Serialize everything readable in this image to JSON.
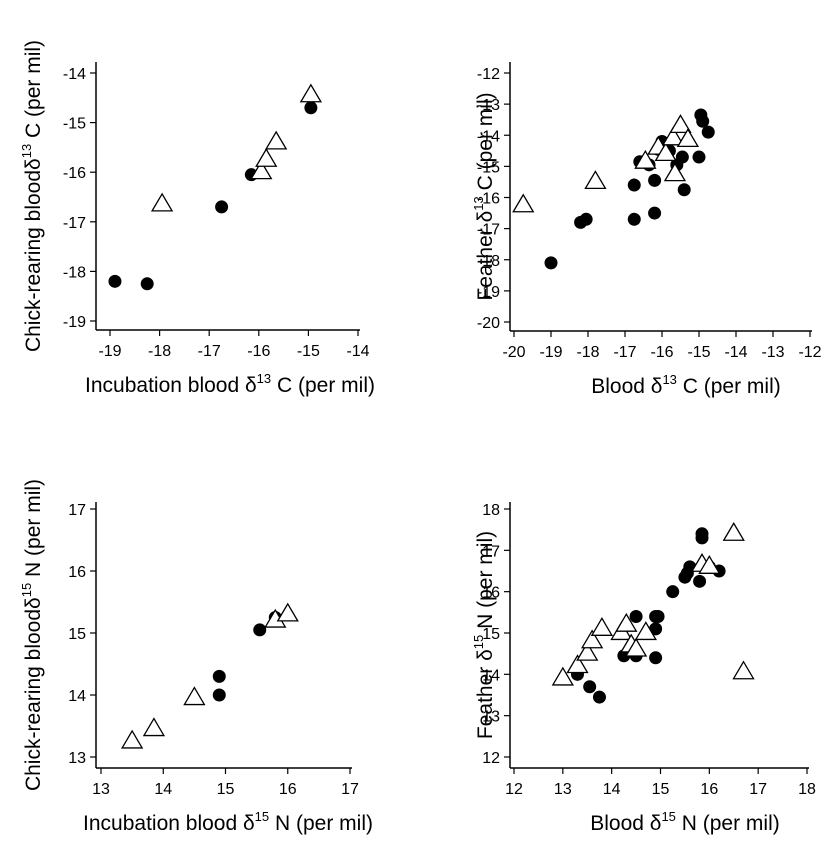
{
  "chart_data": [
    {
      "type": "scatter",
      "xlabel": {
        "pre": "Incubation blood δ",
        "sup": "13",
        "post": " C (per mil)"
      },
      "ylabel": {
        "pre": "Chick-rearing blood",
        "mid": "δ",
        "sup": "13",
        "post": " C (per mil)"
      },
      "xlim": [
        -19.0,
        -14.0
      ],
      "ylim": [
        -19.0,
        -14.0
      ],
      "xticks": [
        "-19",
        "-18",
        "-17",
        "-16",
        "-15",
        "-14"
      ],
      "yticks": [
        "-14",
        "-15",
        "-16",
        "-17",
        "-18",
        "-19"
      ],
      "series": [
        {
          "marker": "filled-circle",
          "x": [
            -18.9,
            -18.25,
            -16.75,
            -16.15,
            -14.95
          ],
          "y": [
            -18.2,
            -18.25,
            -16.7,
            -16.05,
            -14.7
          ]
        },
        {
          "marker": "open-triangle",
          "x": [
            -17.95,
            -15.95,
            -15.85,
            -15.65,
            -14.95
          ],
          "y": [
            -16.65,
            -16.0,
            -15.75,
            -15.4,
            -14.45
          ]
        }
      ]
    },
    {
      "type": "scatter",
      "xlabel": {
        "pre": "Blood δ",
        "sup": "13",
        "post": " C (per mil)"
      },
      "ylabel": {
        "pre": "Feather δ",
        "sup": "13",
        "post": " C (per mil)"
      },
      "xlim": [
        -20,
        -12
      ],
      "ylim": [
        -20,
        -12
      ],
      "xticks": [
        "-20",
        "-19",
        "-18",
        "-17",
        "-16",
        "-15",
        "-14",
        "-13",
        "-12"
      ],
      "yticks": [
        "-12",
        "-13",
        "-14",
        "-15",
        "-16",
        "-17",
        "-18",
        "-19",
        "-20"
      ],
      "series": [
        {
          "marker": "filled-circle",
          "x": [
            -19.0,
            -18.2,
            -18.05,
            -16.75,
            -16.75,
            -16.6,
            -16.35,
            -16.2,
            -16.2,
            -16.1,
            -16.0,
            -15.8,
            -15.6,
            -15.45,
            -15.4,
            -15.0,
            -14.95,
            -14.9,
            -14.75
          ],
          "y": [
            -18.1,
            -16.8,
            -16.7,
            -16.7,
            -15.6,
            -14.85,
            -14.95,
            -15.45,
            -16.5,
            -14.45,
            -14.2,
            -14.5,
            -14.95,
            -14.7,
            -15.75,
            -14.7,
            -13.35,
            -13.55,
            -13.9
          ]
        },
        {
          "marker": "open-triangle",
          "x": [
            -19.75,
            -17.8,
            -16.45,
            -16.1,
            -15.9,
            -15.7,
            -15.65,
            -15.5,
            -15.3
          ],
          "y": [
            -16.25,
            -15.5,
            -14.85,
            -14.4,
            -14.6,
            -14.1,
            -15.25,
            -13.7,
            -14.15
          ]
        }
      ]
    },
    {
      "type": "scatter",
      "xlabel": {
        "pre": "Incubation blood δ",
        "sup": "15",
        "post": " N (per mil)"
      },
      "ylabel": {
        "pre": "Chick-rearing blood",
        "mid": "δ",
        "sup": "15",
        "post": " N (per mil)"
      },
      "xlim": [
        13,
        17
      ],
      "ylim": [
        13,
        17
      ],
      "xticks": [
        "13",
        "14",
        "15",
        "16",
        "17"
      ],
      "yticks": [
        "17",
        "16",
        "15",
        "14",
        "13"
      ],
      "series": [
        {
          "marker": "filled-circle",
          "x": [
            14.9,
            14.9,
            15.55,
            15.8
          ],
          "y": [
            14.0,
            14.3,
            15.05,
            15.25
          ]
        },
        {
          "marker": "open-triangle",
          "x": [
            13.5,
            13.85,
            14.5,
            15.8,
            16.0
          ],
          "y": [
            13.25,
            13.45,
            13.95,
            15.2,
            15.3
          ]
        }
      ]
    },
    {
      "type": "scatter",
      "xlabel": {
        "pre": "Blood δ",
        "sup": "15",
        "post": " N (per mil)"
      },
      "ylabel": {
        "pre": "Feather δ",
        "sup": "15",
        "post": " N (per mil)"
      },
      "xlim": [
        12,
        18
      ],
      "ylim": [
        12,
        18
      ],
      "xticks": [
        "12",
        "13",
        "14",
        "15",
        "16",
        "17",
        "18"
      ],
      "yticks": [
        "18",
        "17",
        "16",
        "15",
        "14",
        "13",
        "12"
      ],
      "series": [
        {
          "marker": "filled-circle",
          "x": [
            13.3,
            13.55,
            13.75,
            14.25,
            14.5,
            14.5,
            14.9,
            14.9,
            14.9,
            14.95,
            15.25,
            15.5,
            15.55,
            15.6,
            15.8,
            15.85,
            15.85,
            16.0,
            16.2
          ],
          "y": [
            14.0,
            13.7,
            13.45,
            14.45,
            14.45,
            15.4,
            15.1,
            15.4,
            14.4,
            15.4,
            16.0,
            16.35,
            16.45,
            16.6,
            16.25,
            17.4,
            17.3,
            16.6,
            16.5
          ]
        },
        {
          "marker": "open-triangle",
          "x": [
            13.0,
            13.3,
            13.5,
            13.6,
            13.8,
            14.2,
            14.3,
            14.4,
            14.5,
            14.7,
            15.85,
            16.0,
            16.5,
            16.7
          ],
          "y": [
            13.9,
            14.2,
            14.5,
            14.8,
            15.1,
            15.0,
            15.2,
            14.7,
            14.6,
            15.0,
            16.65,
            16.6,
            17.4,
            14.05
          ]
        }
      ]
    }
  ]
}
